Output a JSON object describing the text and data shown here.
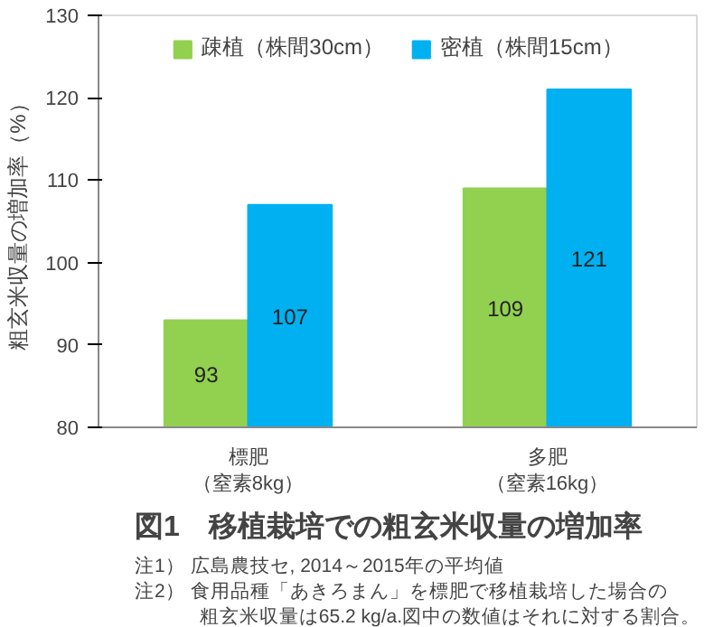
{
  "chart_data": {
    "type": "bar",
    "title": "図1　移植栽培での粗玄米収量の増加率",
    "ylabel": "粗玄米収量の増加率（%）",
    "categories": [
      "標肥（窒素8kg）",
      "多肥（窒素16kg）"
    ],
    "series": [
      {
        "name": "疎植（株間30cm）",
        "color": "#92d050",
        "values": [
          93,
          109
        ]
      },
      {
        "name": "密植（株間15cm）",
        "color": "#00b0f0",
        "values": [
          107,
          121
        ]
      }
    ],
    "ylim": [
      80,
      130
    ],
    "yticks": [
      80,
      90,
      100,
      110,
      120,
      130
    ],
    "grid": false,
    "legend": "top",
    "data_labels": true,
    "annotations": [
      "注1）  広島農技セ, 2014～2015年の平均値",
      "注2）  食用品種「あきろまん」を標肥で移植栽培した場合の",
      "　　　 粗玄米収量は65.2 kg/a.図中の数値はそれに対する割合。"
    ]
  }
}
